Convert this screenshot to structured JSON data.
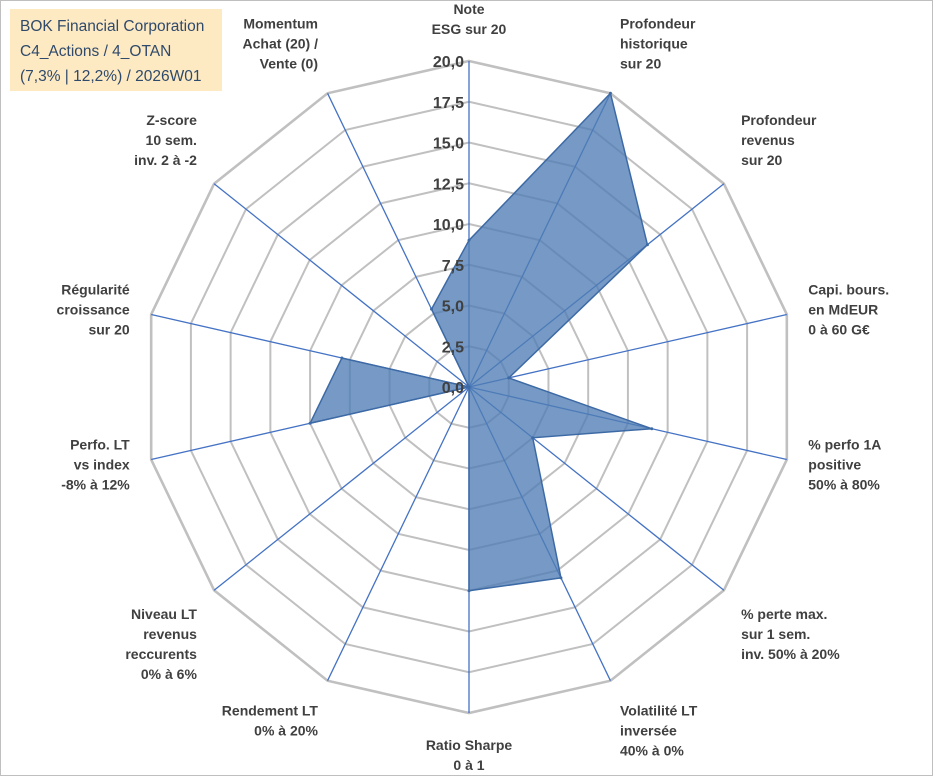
{
  "title_box": {
    "line1": "BOK Financial Corporation",
    "line2": "C4_Actions / 4_OTAN",
    "line3": "(7,3% | 12,2%) / 2026W01"
  },
  "colors": {
    "background": "#ffffff",
    "title_box_bg": "#fde9c2",
    "title_text": "#2f4a6b",
    "grid": "#c0c0c0",
    "spoke": "#4472c4",
    "series_fill": "#4f7db5",
    "series_stroke": "#3d6aa5",
    "label_text": "#404040"
  },
  "chart_data": {
    "type": "radar",
    "title": "BOK Financial Corporation",
    "rmin": 0,
    "rmax": 20,
    "tick_step": 2.5,
    "tick_labels": [
      "0,0",
      "2,5",
      "5,0",
      "7,5",
      "10,0",
      "12,5",
      "15,0",
      "17,5",
      "20,0"
    ],
    "grid": true,
    "axes": [
      {
        "label": [
          "Note",
          "ESG sur 20"
        ]
      },
      {
        "label": [
          "Profondeur",
          "historique",
          "sur 20"
        ]
      },
      {
        "label": [
          "Profondeur",
          "revenus",
          "sur 20"
        ]
      },
      {
        "label": [
          "Capi. bours.",
          "en MdEUR",
          "0 à 60 G€"
        ]
      },
      {
        "label": [
          "% perfo 1A",
          "positive",
          "50% à 80%"
        ]
      },
      {
        "label": [
          "% perte max.",
          "sur 1 sem.",
          "inv. 50% à 20%"
        ]
      },
      {
        "label": [
          "Volatilité LT",
          "inversée",
          "40% à 0%"
        ]
      },
      {
        "label": [
          "Ratio Sharpe",
          "0 à 1"
        ]
      },
      {
        "label": [
          "Rendement LT",
          "0% à 20%"
        ]
      },
      {
        "label": [
          "Niveau LT",
          "revenus",
          "reccurents",
          "0% à 6%"
        ]
      },
      {
        "label": [
          "Perfo. LT",
          "vs index",
          "-8% à 12%"
        ]
      },
      {
        "label": [
          "Régularité",
          "croissance",
          "sur 20"
        ]
      },
      {
        "label": [
          "Z-score",
          "10 sem.",
          "inv. 2 à -2"
        ]
      },
      {
        "label": [
          "Momentum",
          "Achat (20) /",
          "Vente (0)"
        ]
      }
    ],
    "series": [
      {
        "name": "BOK Financial Corporation",
        "values": [
          9.0,
          20.0,
          14.0,
          2.5,
          11.5,
          5.0,
          13.0,
          12.5,
          0.0,
          0.0,
          10.0,
          8.0,
          0.0,
          5.3
        ]
      }
    ]
  }
}
